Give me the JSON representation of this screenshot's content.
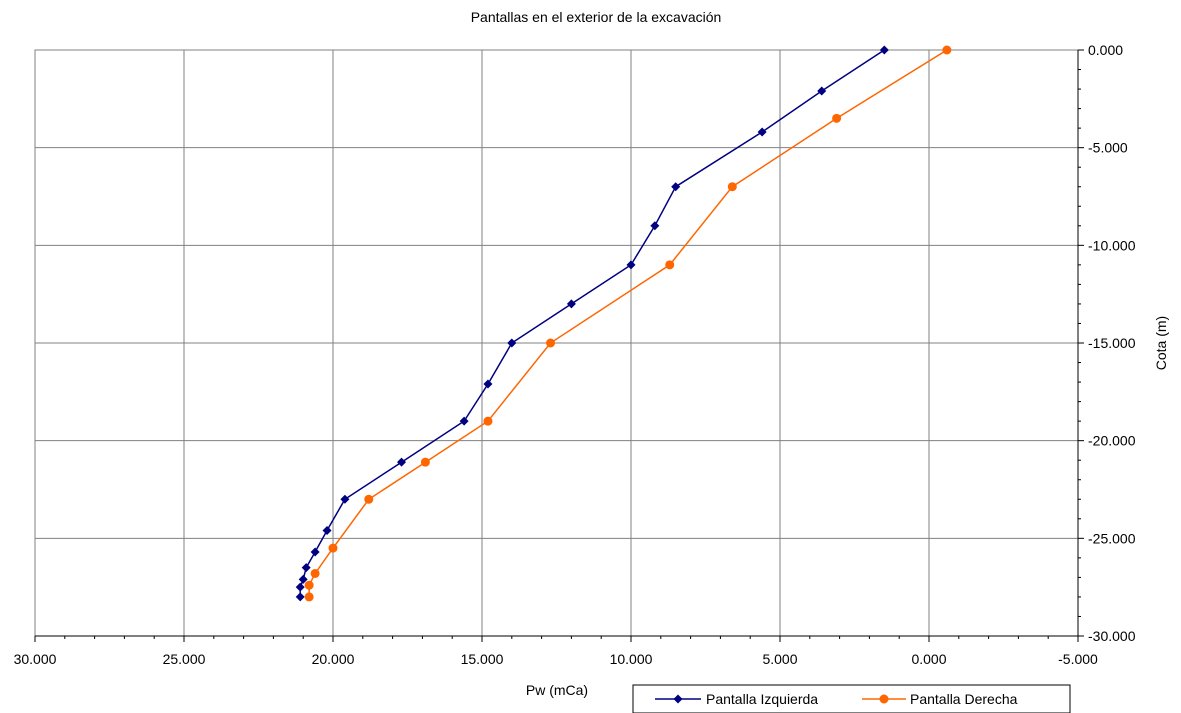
{
  "chart_data": {
    "type": "line",
    "title": "Pantallas en el exterior de la excavación",
    "xlabel": "Pw (mCa)",
    "ylabel": "Cota (m)",
    "xlim": [
      30,
      -5
    ],
    "ylim": [
      -30,
      0
    ],
    "x_reversed": true,
    "x_ticks": [
      30,
      25,
      20,
      15,
      10,
      5,
      0,
      -5
    ],
    "x_tick_labels": [
      "30.000",
      "25.000",
      "20.000",
      "15.000",
      "10.000",
      "5.000",
      "0.000",
      "-5.000"
    ],
    "y_ticks": [
      0,
      -5,
      -10,
      -15,
      -20,
      -25,
      -30
    ],
    "y_tick_labels": [
      "0.000",
      "-5.000",
      "-10.000",
      "-15.000",
      "-20.000",
      "-25.000",
      "-30.000"
    ],
    "y_axis_position": "right",
    "grid": true,
    "legend_position": "bottom-right",
    "series": [
      {
        "name": "Pantalla Izquierda",
        "color": "#000080",
        "marker": "diamond",
        "points": [
          [
            1.5,
            0
          ],
          [
            3.6,
            -2.1
          ],
          [
            5.6,
            -4.2
          ],
          [
            8.5,
            -7
          ],
          [
            9.2,
            -9
          ],
          [
            10.0,
            -11
          ],
          [
            12.0,
            -13
          ],
          [
            14.0,
            -15
          ],
          [
            14.8,
            -17.1
          ],
          [
            15.6,
            -19
          ],
          [
            17.7,
            -21.1
          ],
          [
            19.6,
            -23
          ],
          [
            20.2,
            -24.6
          ],
          [
            20.6,
            -25.7
          ],
          [
            20.9,
            -26.5
          ],
          [
            21.0,
            -27.1
          ],
          [
            21.1,
            -27.5
          ],
          [
            21.1,
            -28
          ]
        ]
      },
      {
        "name": "Pantalla Derecha",
        "color": "#ff6600",
        "marker": "circle",
        "points": [
          [
            -0.6,
            0
          ],
          [
            3.1,
            -3.5
          ],
          [
            6.6,
            -7
          ],
          [
            8.7,
            -11
          ],
          [
            12.7,
            -15
          ],
          [
            14.8,
            -19
          ],
          [
            16.9,
            -21.1
          ],
          [
            18.8,
            -23
          ],
          [
            20.0,
            -25.5
          ],
          [
            20.6,
            -26.8
          ],
          [
            20.8,
            -27.4
          ],
          [
            20.8,
            -28
          ]
        ]
      }
    ]
  }
}
